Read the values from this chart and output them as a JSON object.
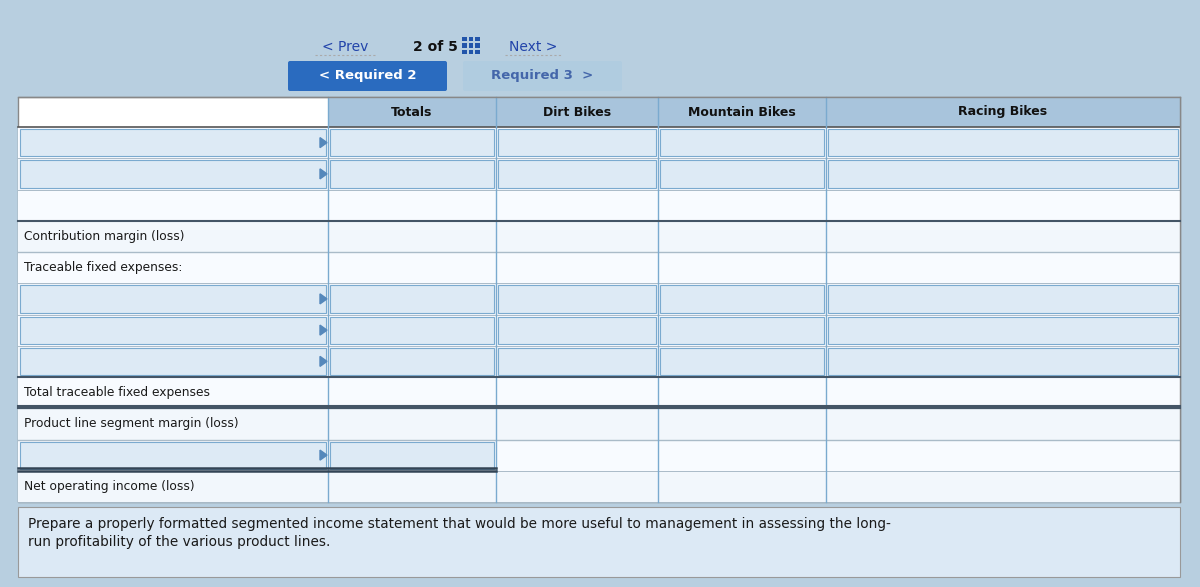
{
  "header_text_line1": "Prepare a properly formatted segmented income statement that would be more useful to management in assessing the long-",
  "header_text_line2": "run profitability of the various product lines.",
  "header_bg": "#dce9f5",
  "outer_bg": "#b8cfe0",
  "table_outer_bg": "#ffffff",
  "col_header_bg": "#a8c4dc",
  "col_header_text": "#111111",
  "col_headers": [
    "Totals",
    "Dirt Bikes",
    "Mountain Bikes",
    "Racing Bikes"
  ],
  "input_cell_bg": "#ddeaf5",
  "input_cell_border": "#7aaacf",
  "row_line_color": "#aabbc8",
  "col_line_color": "#7aaacf",
  "rows": [
    {
      "label": "",
      "input": true,
      "all_cols": true,
      "marker": true
    },
    {
      "label": "",
      "input": true,
      "all_cols": true,
      "marker": true
    },
    {
      "label": "",
      "input": false,
      "all_cols": false,
      "marker": false
    },
    {
      "label": "Contribution margin (loss)",
      "input": false,
      "all_cols": false,
      "marker": false
    },
    {
      "label": "Traceable fixed expenses:",
      "input": false,
      "all_cols": false,
      "marker": false
    },
    {
      "label": "",
      "input": true,
      "all_cols": true,
      "marker": true
    },
    {
      "label": "",
      "input": true,
      "all_cols": true,
      "marker": true
    },
    {
      "label": "",
      "input": true,
      "all_cols": true,
      "marker": true
    },
    {
      "label": "Total traceable fixed expenses",
      "input": false,
      "all_cols": false,
      "marker": false
    },
    {
      "label": "Product line segment margin (loss)",
      "input": false,
      "all_cols": false,
      "marker": false
    },
    {
      "label": "",
      "input": true,
      "all_cols": false,
      "marker": true
    },
    {
      "label": "Net operating income (loss)",
      "input": false,
      "all_cols": false,
      "marker": false
    }
  ],
  "btn1_text": "< Required 2",
  "btn1_color": "#2a6bbf",
  "btn1_text_color": "#ffffff",
  "btn2_text": "Required 3  >",
  "btn2_color": "#b0cce0",
  "btn2_text_color": "#4466aa",
  "nav_prev": "< Prev",
  "nav_page": "2 of 5",
  "nav_next": "Next >",
  "nav_color": "#2244aa",
  "special_thick_rows": [
    "Contribution margin (loss)",
    "Total traceable fixed expenses",
    "Product line segment margin (loss)"
  ],
  "double_line_rows": [
    "Product line segment margin (loss)"
  ],
  "net_income_double": true
}
